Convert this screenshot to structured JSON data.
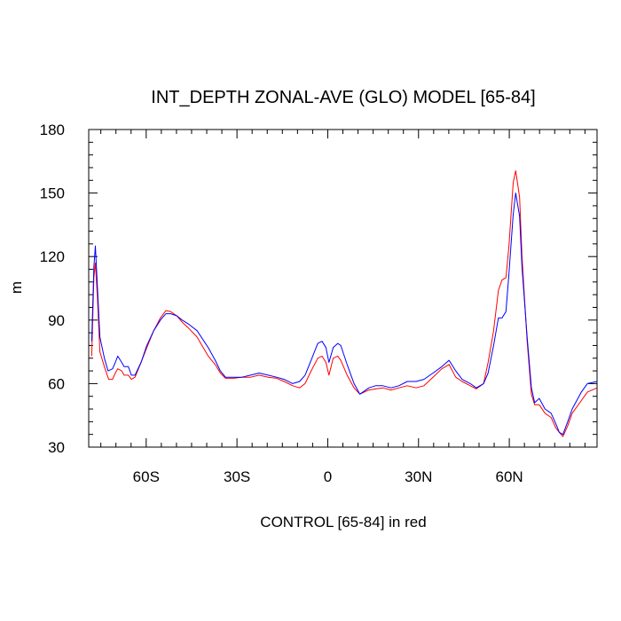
{
  "chart_data": {
    "type": "line",
    "title": "INT_DEPTH ZONAL-AVE (GLO) MODEL [65-84]",
    "xlabel": "CONTROL [65-84] in red",
    "ylabel": "m",
    "xlim": [
      -79,
      89
    ],
    "ylim": [
      30,
      180
    ],
    "x_ticks": [
      {
        "value": -60,
        "label": "60S"
      },
      {
        "value": -30,
        "label": "30S"
      },
      {
        "value": 0,
        "label": "0"
      },
      {
        "value": 30,
        "label": "30N"
      },
      {
        "value": 60,
        "label": "60N"
      }
    ],
    "x_minor_step": 5,
    "y_ticks": [
      {
        "value": 30,
        "label": "30"
      },
      {
        "value": 60,
        "label": "60"
      },
      {
        "value": 90,
        "label": "90"
      },
      {
        "value": 120,
        "label": "120"
      },
      {
        "value": 150,
        "label": "150"
      },
      {
        "value": 180,
        "label": "180"
      }
    ],
    "y_minor_step": 6,
    "grid": false,
    "legend": "none",
    "series": [
      {
        "color": "#ff0000",
        "points": [
          [
            -78,
            73
          ],
          [
            -77.3,
            110
          ],
          [
            -76.8,
            117
          ],
          [
            -76.1,
            100
          ],
          [
            -75.3,
            75
          ],
          [
            -73.6,
            67
          ],
          [
            -72.4,
            62
          ],
          [
            -71.1,
            62
          ],
          [
            -70.2,
            65
          ],
          [
            -69.4,
            67
          ],
          [
            -68.1,
            66
          ],
          [
            -67.3,
            64
          ],
          [
            -65.9,
            64
          ],
          [
            -64.9,
            62
          ],
          [
            -63.7,
            63
          ],
          [
            -61.7,
            70
          ],
          [
            -59.8,
            77
          ],
          [
            -57.5,
            85
          ],
          [
            -55.3,
            91
          ],
          [
            -53.5,
            94.5
          ],
          [
            -51.9,
            94
          ],
          [
            -49.9,
            92
          ],
          [
            -48.1,
            89
          ],
          [
            -45.9,
            86
          ],
          [
            -43.2,
            82
          ],
          [
            -39.5,
            73
          ],
          [
            -37.2,
            69
          ],
          [
            -35.5,
            65
          ],
          [
            -33.8,
            62.5
          ],
          [
            -31.1,
            62.5
          ],
          [
            -28.4,
            63
          ],
          [
            -25.5,
            63
          ],
          [
            -22.7,
            64
          ],
          [
            -19.7,
            63
          ],
          [
            -16.9,
            62.5
          ],
          [
            -14.4,
            61
          ],
          [
            -11.6,
            59
          ],
          [
            -9.3,
            58
          ],
          [
            -7.5,
            60
          ],
          [
            -5.5,
            66
          ],
          [
            -3.3,
            72
          ],
          [
            -1.9,
            73
          ],
          [
            -0.6,
            70
          ],
          [
            0.4,
            64
          ],
          [
            1.8,
            72
          ],
          [
            3.3,
            73
          ],
          [
            4.3,
            71
          ],
          [
            6.4,
            64
          ],
          [
            8.7,
            58
          ],
          [
            10.6,
            55
          ],
          [
            13.6,
            57
          ],
          [
            15.8,
            57.5
          ],
          [
            18.2,
            58
          ],
          [
            20.9,
            57
          ],
          [
            23.5,
            58
          ],
          [
            26.3,
            59
          ],
          [
            29.2,
            58
          ],
          [
            31.8,
            59
          ],
          [
            34.8,
            63
          ],
          [
            37.7,
            67
          ],
          [
            40.1,
            69
          ],
          [
            42.3,
            63
          ],
          [
            44.4,
            61
          ],
          [
            47.1,
            59
          ],
          [
            49.1,
            57.5
          ],
          [
            51.5,
            60
          ],
          [
            53.0,
            70
          ],
          [
            54.8,
            85
          ],
          [
            56.4,
            104
          ],
          [
            57.6,
            109
          ],
          [
            58.9,
            110
          ],
          [
            59.9,
            125
          ],
          [
            61.3,
            155
          ],
          [
            62.1,
            160.5
          ],
          [
            63.4,
            148
          ],
          [
            64.2,
            120
          ],
          [
            65.9,
            80
          ],
          [
            67.3,
            55
          ],
          [
            68.4,
            50
          ],
          [
            69.9,
            50
          ],
          [
            71.8,
            46
          ],
          [
            73.8,
            44
          ],
          [
            75.4,
            39
          ],
          [
            76.5,
            37
          ],
          [
            77.7,
            35
          ],
          [
            79.3,
            40
          ],
          [
            80.8,
            46
          ],
          [
            83.8,
            52
          ],
          [
            85.8,
            56
          ],
          [
            89,
            58
          ]
        ]
      },
      {
        "color": "#0000ff",
        "points": [
          [
            -78,
            80
          ],
          [
            -77.3,
            115
          ],
          [
            -76.8,
            125
          ],
          [
            -76.1,
            105
          ],
          [
            -75.3,
            82
          ],
          [
            -73.8,
            72
          ],
          [
            -72.6,
            66
          ],
          [
            -71.1,
            67
          ],
          [
            -70.2,
            70
          ],
          [
            -69.4,
            73
          ],
          [
            -68.1,
            70
          ],
          [
            -67.3,
            68
          ],
          [
            -65.9,
            68
          ],
          [
            -64.9,
            64
          ],
          [
            -63.7,
            64
          ],
          [
            -61.7,
            70
          ],
          [
            -59.8,
            78
          ],
          [
            -57.5,
            85
          ],
          [
            -55.3,
            90
          ],
          [
            -53.5,
            93
          ],
          [
            -51.9,
            93
          ],
          [
            -49.9,
            92
          ],
          [
            -48.1,
            90
          ],
          [
            -45.9,
            88
          ],
          [
            -43.2,
            85
          ],
          [
            -39.5,
            77
          ],
          [
            -37.2,
            71
          ],
          [
            -35.5,
            66
          ],
          [
            -33.8,
            63
          ],
          [
            -31.1,
            63
          ],
          [
            -28.4,
            63
          ],
          [
            -25.5,
            64
          ],
          [
            -22.7,
            65
          ],
          [
            -19.7,
            64
          ],
          [
            -16.9,
            63
          ],
          [
            -14.4,
            62
          ],
          [
            -11.6,
            60
          ],
          [
            -9.3,
            61
          ],
          [
            -7.5,
            64
          ],
          [
            -5.5,
            71
          ],
          [
            -3.3,
            79
          ],
          [
            -1.9,
            80
          ],
          [
            -0.6,
            77
          ],
          [
            0.4,
            70
          ],
          [
            1.8,
            77
          ],
          [
            3.3,
            79
          ],
          [
            4.3,
            78
          ],
          [
            6.4,
            69
          ],
          [
            8.7,
            60
          ],
          [
            10.6,
            55
          ],
          [
            13.6,
            58
          ],
          [
            15.8,
            59
          ],
          [
            18.2,
            59
          ],
          [
            20.9,
            58
          ],
          [
            23.5,
            59
          ],
          [
            26.3,
            61
          ],
          [
            29.2,
            61
          ],
          [
            31.8,
            62
          ],
          [
            34.8,
            65
          ],
          [
            37.7,
            68
          ],
          [
            40.1,
            71
          ],
          [
            42.3,
            66
          ],
          [
            44.4,
            62
          ],
          [
            47.1,
            60
          ],
          [
            49.1,
            58
          ],
          [
            51.5,
            60
          ],
          [
            53.0,
            65
          ],
          [
            54.8,
            78
          ],
          [
            56.4,
            91
          ],
          [
            57.6,
            91
          ],
          [
            58.9,
            94
          ],
          [
            59.9,
            112
          ],
          [
            61.3,
            140
          ],
          [
            62.1,
            150
          ],
          [
            63.4,
            139
          ],
          [
            64.2,
            115
          ],
          [
            65.9,
            82
          ],
          [
            67.3,
            58
          ],
          [
            68.4,
            51
          ],
          [
            69.9,
            53
          ],
          [
            71.8,
            48
          ],
          [
            73.8,
            46
          ],
          [
            75.4,
            41
          ],
          [
            76.5,
            37
          ],
          [
            77.7,
            36
          ],
          [
            79.3,
            42
          ],
          [
            80.8,
            48
          ],
          [
            83.8,
            56
          ],
          [
            85.8,
            60
          ],
          [
            89,
            61
          ]
        ]
      }
    ]
  }
}
